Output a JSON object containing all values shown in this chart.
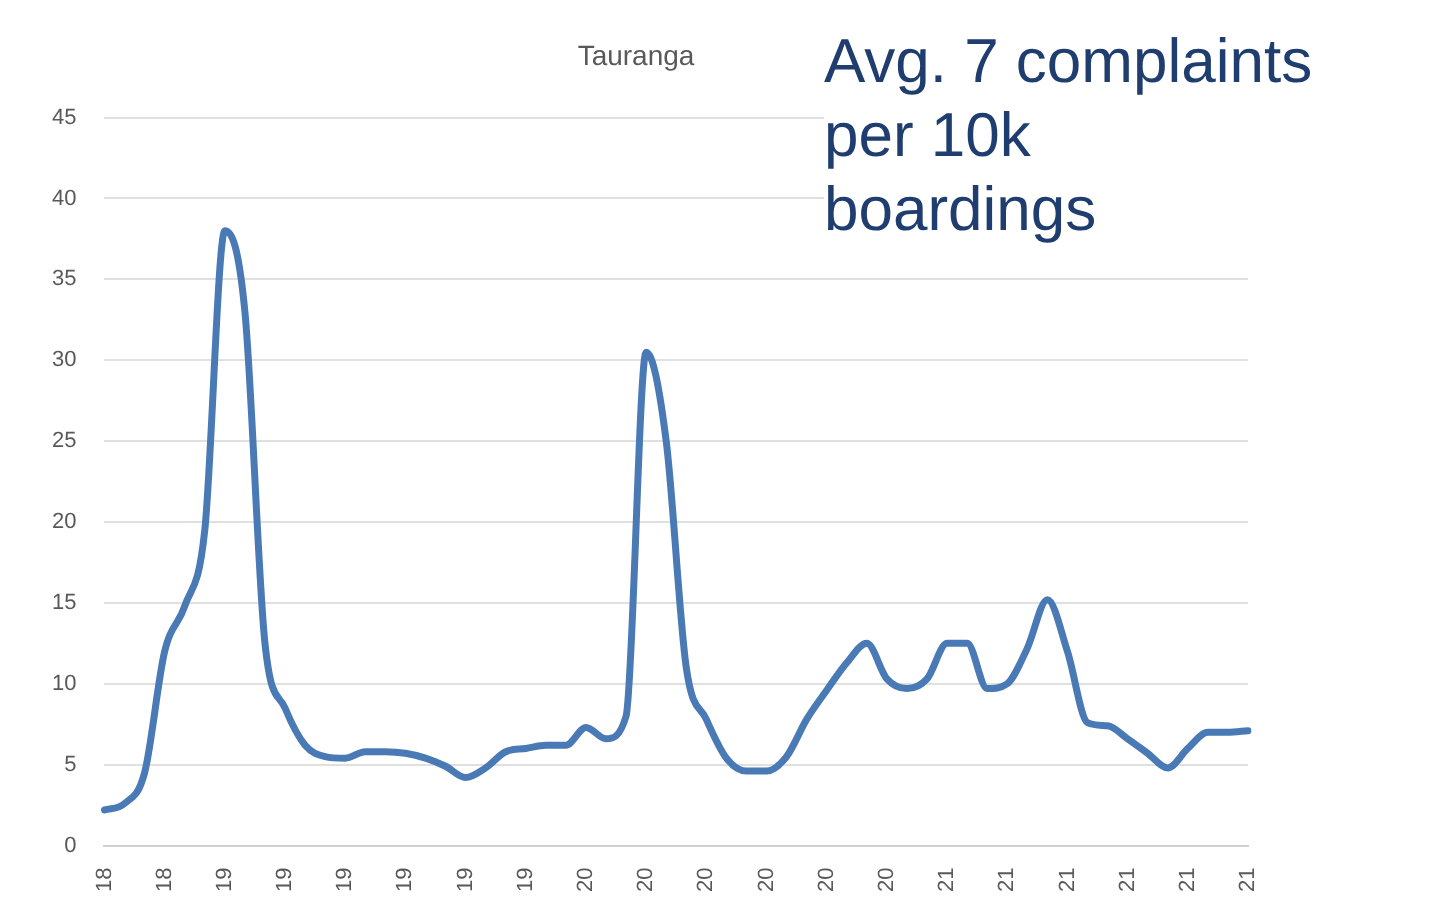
{
  "chart_data": {
    "type": "line",
    "title": "Tauranga",
    "annotations": [
      "Avg. 7 complaints\nper 10k\nboardings"
    ],
    "categories": [
      "18",
      null,
      null,
      "18",
      null,
      null,
      "19",
      null,
      null,
      "19",
      null,
      null,
      "19",
      null,
      null,
      "19",
      null,
      null,
      "19",
      null,
      null,
      "19",
      null,
      null,
      "20",
      null,
      null,
      "20",
      null,
      null,
      "20",
      null,
      null,
      "20",
      null,
      null,
      "20",
      null,
      null,
      "20",
      null,
      null,
      "21",
      null,
      null,
      "21",
      null,
      null,
      "21",
      null,
      null,
      "21",
      null,
      null,
      "21",
      null,
      null,
      "21"
    ],
    "series": [
      {
        "color": "#4a7ab5",
        "values": [
          2.2,
          2.6,
          4.5,
          12,
          14.8,
          19.5,
          38,
          33,
          12.5,
          8.5,
          6.2,
          5.5,
          5.4,
          5.8,
          5.8,
          5.7,
          5.4,
          4.9,
          4.2,
          4.8,
          5.8,
          6,
          6.2,
          6.2,
          7.3,
          6.6,
          8,
          30.5,
          25,
          11,
          7.8,
          5.4,
          4.6,
          4.6,
          5.5,
          7.8,
          9.6,
          11.3,
          12.5,
          10.3,
          9.7,
          10.3,
          12.5,
          12.5,
          9.7,
          10,
          12.2,
          15.2,
          12,
          7.6,
          7.4,
          6.6,
          5.7,
          4.8,
          6,
          7,
          7,
          7.1
        ]
      }
    ],
    "ylim": [
      0,
      45
    ],
    "yticks": [
      0,
      5,
      10,
      15,
      20,
      25,
      30,
      35,
      40,
      45
    ],
    "grid": "y",
    "marker": "none",
    "line_style": "solid",
    "legend": false
  }
}
